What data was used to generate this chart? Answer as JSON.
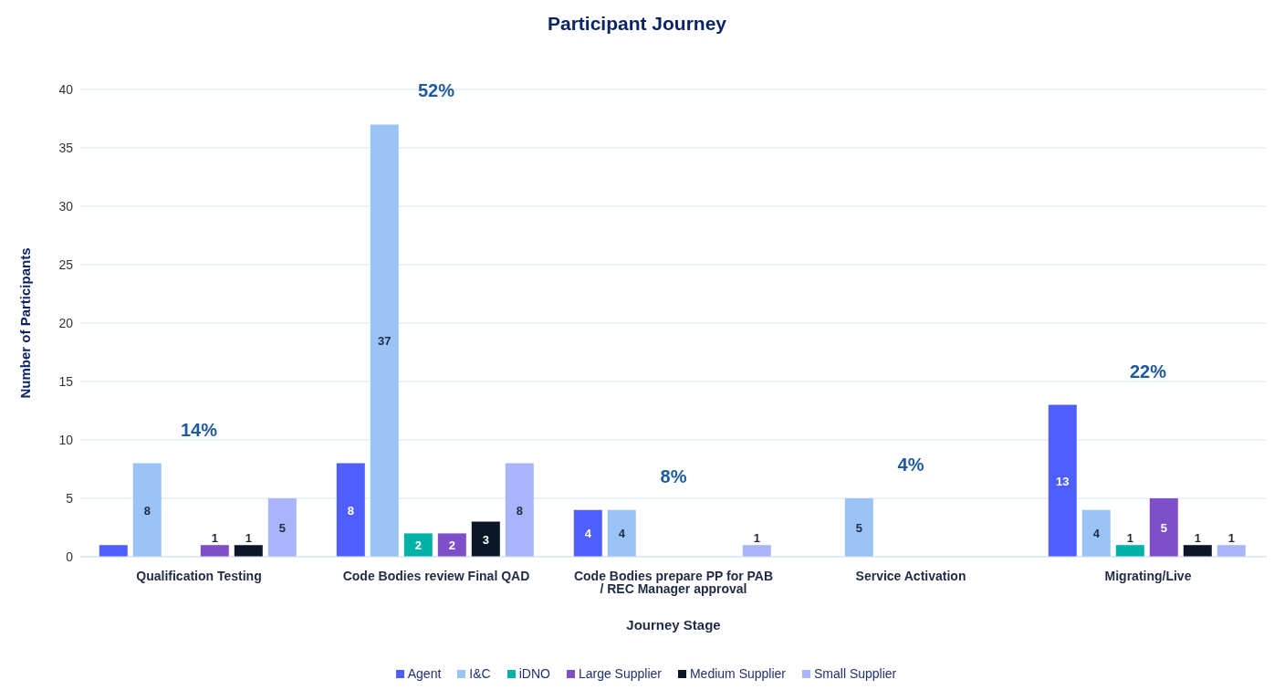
{
  "chart_data": {
    "type": "bar",
    "title": "Participant Journey",
    "xlabel": "Journey Stage",
    "ylabel": "Number of Participants",
    "categories": [
      "Qualification Testing",
      "Code Bodies review Final QAD",
      "Code Bodies prepare PP for PAB / REC Manager approval",
      "Service Activation",
      "Migrating/Live"
    ],
    "series": [
      {
        "name": "Agent",
        "color": "#4f5fff",
        "values": [
          1,
          8,
          4,
          null,
          13
        ],
        "value_labels": [
          null,
          "8",
          "4",
          null,
          "13"
        ]
      },
      {
        "name": "I&C",
        "color": "#99c4f5",
        "values": [
          8,
          37,
          4,
          5,
          4
        ],
        "value_labels": [
          "8",
          "37",
          "4",
          "5",
          "4"
        ]
      },
      {
        "name": "iDNO",
        "color": "#00b2a6",
        "values": [
          null,
          2,
          null,
          null,
          1
        ],
        "value_labels": [
          null,
          "2",
          null,
          null,
          "1"
        ]
      },
      {
        "name": "Large Supplier",
        "color": "#7f4fc9",
        "values": [
          1,
          2,
          null,
          null,
          5
        ],
        "value_labels": [
          "1",
          "2",
          null,
          null,
          "5"
        ]
      },
      {
        "name": "Medium Supplier",
        "color": "#0a1628",
        "values": [
          1,
          3,
          null,
          null,
          1
        ],
        "value_labels": [
          "1",
          "3",
          null,
          null,
          "1"
        ]
      },
      {
        "name": "Small Supplier",
        "color": "#aab4fa",
        "values": [
          5,
          8,
          1,
          null,
          1
        ],
        "value_labels": [
          "5",
          "8",
          "1",
          null,
          "1"
        ]
      }
    ],
    "ylim": [
      0,
      40
    ],
    "yticks": [
      0,
      5,
      10,
      15,
      20,
      25,
      30,
      35,
      40
    ],
    "grid": "y",
    "legend": "bottom",
    "annotations": [
      "14%",
      "52%",
      "8%",
      "4%",
      "22%"
    ]
  }
}
